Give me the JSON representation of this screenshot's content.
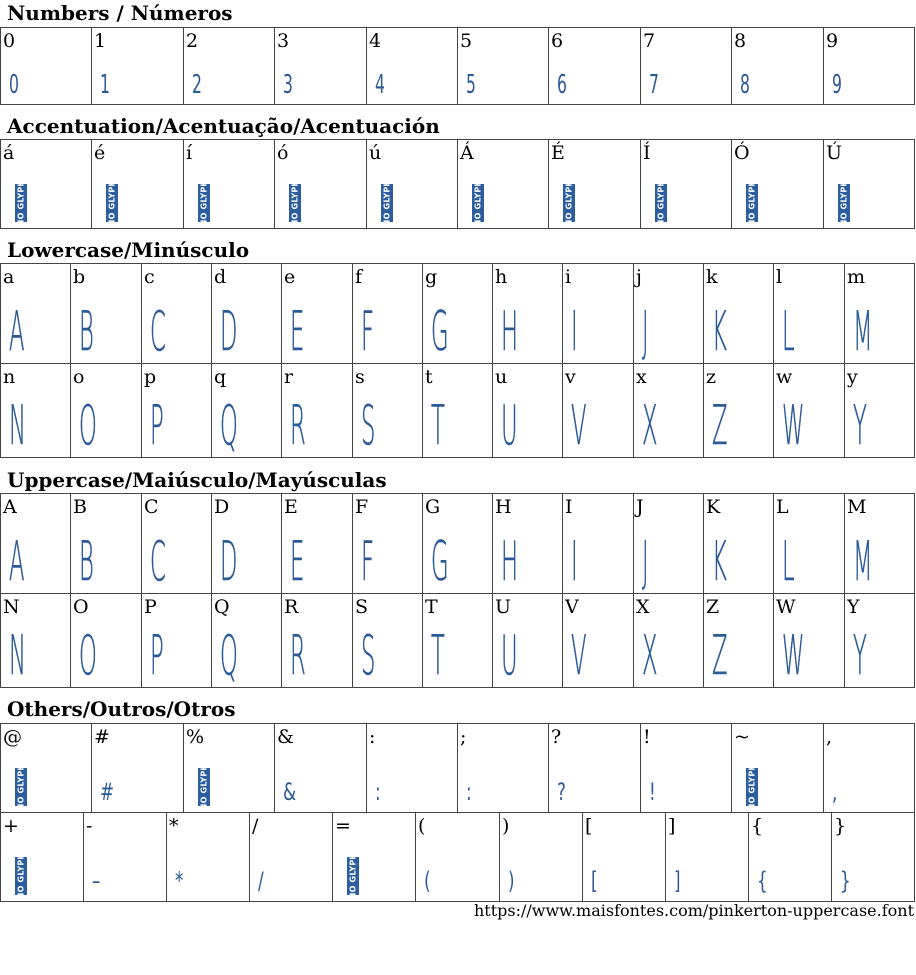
{
  "sections": {
    "numbers": "Numbers / Números",
    "accents": "Accentuation/Acentuação/Acentuación",
    "lowercase": "Lowercase/Minúsculo",
    "uppercase": "Uppercase/Maiúsculo/Mayúsculas",
    "others": "Others/Outros/Otros"
  },
  "no_glyph_text": "NO GLYPH",
  "numbers": [
    {
      "label": "0",
      "glyph": "0"
    },
    {
      "label": "1",
      "glyph": "1"
    },
    {
      "label": "2",
      "glyph": "2"
    },
    {
      "label": "3",
      "glyph": "3"
    },
    {
      "label": "4",
      "glyph": "4"
    },
    {
      "label": "5",
      "glyph": "5"
    },
    {
      "label": "6",
      "glyph": "6"
    },
    {
      "label": "7",
      "glyph": "7"
    },
    {
      "label": "8",
      "glyph": "8"
    },
    {
      "label": "9",
      "glyph": "9"
    }
  ],
  "accents": [
    {
      "label": "á"
    },
    {
      "label": "é"
    },
    {
      "label": "í"
    },
    {
      "label": "ó"
    },
    {
      "label": "ú"
    },
    {
      "label": "Á"
    },
    {
      "label": "É"
    },
    {
      "label": "Í"
    },
    {
      "label": "Ó"
    },
    {
      "label": "Ú"
    }
  ],
  "lowercase": [
    [
      {
        "label": "a",
        "glyph": "A"
      },
      {
        "label": "b",
        "glyph": "B"
      },
      {
        "label": "c",
        "glyph": "C"
      },
      {
        "label": "d",
        "glyph": "D"
      },
      {
        "label": "e",
        "glyph": "E"
      },
      {
        "label": "f",
        "glyph": "F"
      },
      {
        "label": "g",
        "glyph": "G"
      },
      {
        "label": "h",
        "glyph": "H"
      },
      {
        "label": "i",
        "glyph": "I"
      },
      {
        "label": "j",
        "glyph": "J"
      },
      {
        "label": "k",
        "glyph": "K"
      },
      {
        "label": "l",
        "glyph": "L"
      },
      {
        "label": "m",
        "glyph": "M"
      }
    ],
    [
      {
        "label": "n",
        "glyph": "N"
      },
      {
        "label": "o",
        "glyph": "O"
      },
      {
        "label": "p",
        "glyph": "P"
      },
      {
        "label": "q",
        "glyph": "Q"
      },
      {
        "label": "r",
        "glyph": "R"
      },
      {
        "label": "s",
        "glyph": "S"
      },
      {
        "label": "t",
        "glyph": "T"
      },
      {
        "label": "u",
        "glyph": "U"
      },
      {
        "label": "v",
        "glyph": "V"
      },
      {
        "label": "x",
        "glyph": "X"
      },
      {
        "label": "z",
        "glyph": "Z"
      },
      {
        "label": "w",
        "glyph": "W"
      },
      {
        "label": "y",
        "glyph": "Y"
      }
    ]
  ],
  "uppercase": [
    [
      {
        "label": "A",
        "glyph": "A"
      },
      {
        "label": "B",
        "glyph": "B"
      },
      {
        "label": "C",
        "glyph": "C"
      },
      {
        "label": "D",
        "glyph": "D"
      },
      {
        "label": "E",
        "glyph": "E"
      },
      {
        "label": "F",
        "glyph": "F"
      },
      {
        "label": "G",
        "glyph": "G"
      },
      {
        "label": "H",
        "glyph": "H"
      },
      {
        "label": "I",
        "glyph": "I"
      },
      {
        "label": "J",
        "glyph": "J"
      },
      {
        "label": "K",
        "glyph": "K"
      },
      {
        "label": "L",
        "glyph": "L"
      },
      {
        "label": "M",
        "glyph": "M"
      }
    ],
    [
      {
        "label": "N",
        "glyph": "N"
      },
      {
        "label": "O",
        "glyph": "O"
      },
      {
        "label": "P",
        "glyph": "P"
      },
      {
        "label": "Q",
        "glyph": "Q"
      },
      {
        "label": "R",
        "glyph": "R"
      },
      {
        "label": "S",
        "glyph": "S"
      },
      {
        "label": "T",
        "glyph": "T"
      },
      {
        "label": "U",
        "glyph": "U"
      },
      {
        "label": "V",
        "glyph": "V"
      },
      {
        "label": "X",
        "glyph": "X"
      },
      {
        "label": "Z",
        "glyph": "Z"
      },
      {
        "label": "W",
        "glyph": "W"
      },
      {
        "label": "Y",
        "glyph": "Y"
      }
    ]
  ],
  "others": [
    [
      {
        "label": "@",
        "glyph": null
      },
      {
        "label": "#",
        "glyph": "#"
      },
      {
        "label": "%",
        "glyph": null
      },
      {
        "label": "&",
        "glyph": "&"
      },
      {
        "label": ":",
        "glyph": ":"
      },
      {
        "label": ";",
        "glyph": ":"
      },
      {
        "label": "?",
        "glyph": "?"
      },
      {
        "label": "!",
        "glyph": "!"
      },
      {
        "label": "~",
        "glyph": null
      },
      {
        "label": ",",
        "glyph": ","
      }
    ],
    [
      {
        "label": "+",
        "glyph": null
      },
      {
        "label": "-",
        "glyph": "–"
      },
      {
        "label": "*",
        "glyph": "*"
      },
      {
        "label": "/",
        "glyph": "/"
      },
      {
        "label": "=",
        "glyph": null
      },
      {
        "label": "(",
        "glyph": "("
      },
      {
        "label": ")",
        "glyph": ")"
      },
      {
        "label": "[",
        "glyph": "["
      },
      {
        "label": "]",
        "glyph": "]"
      },
      {
        "label": "{",
        "glyph": "{"
      },
      {
        "label": "}",
        "glyph": "}"
      }
    ]
  ],
  "footer_url": "https://www.maisfontes.com/pinkerton-uppercase.font",
  "colors": {
    "glyph": "#2b5a98",
    "no_glyph_bg": "#2c5d9e",
    "border": "#444444"
  }
}
